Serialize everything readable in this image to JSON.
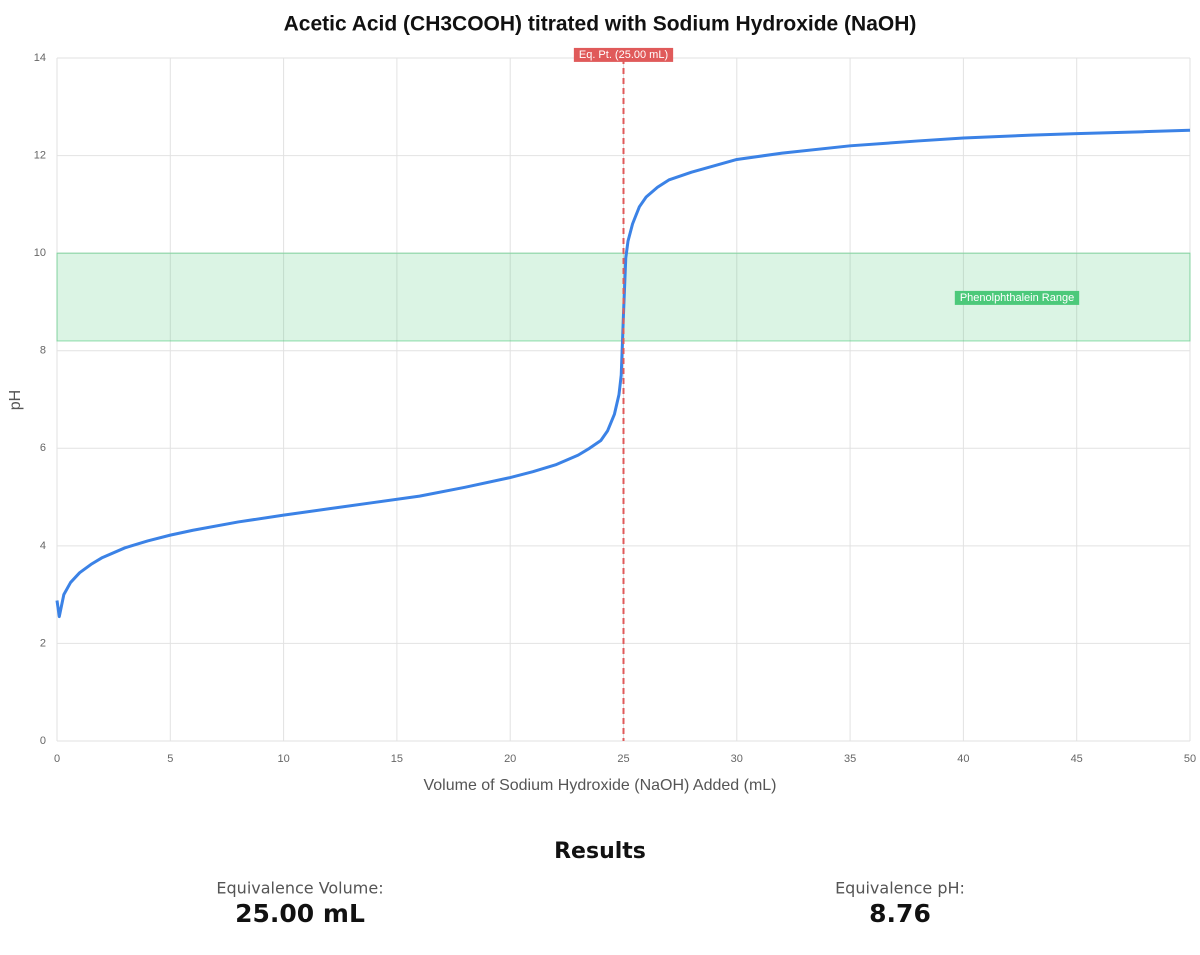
{
  "chart_data": {
    "type": "line",
    "title": "Acetic Acid (CH3COOH) titrated with Sodium Hydroxide (NaOH)",
    "x_label": "Volume of Sodium Hydroxide (NaOH) Added (mL)",
    "y_label": "pH",
    "series": [
      {
        "name": "pH",
        "color": "#3b82e6",
        "x": [
          0,
          0.1,
          0.3,
          0.6,
          1,
          1.5,
          2,
          3,
          4,
          5,
          6,
          8,
          10,
          12,
          14,
          16,
          18,
          20,
          21,
          22,
          23,
          23.5,
          24,
          24.3,
          24.6,
          24.8,
          24.9,
          25,
          25.1,
          25.2,
          25.4,
          25.7,
          26,
          26.5,
          27,
          28,
          30,
          32,
          35,
          38,
          40,
          43,
          45,
          48,
          50
        ],
        "values": [
          2.88,
          2.55,
          3.0,
          3.25,
          3.45,
          3.62,
          3.76,
          3.96,
          4.1,
          4.22,
          4.32,
          4.49,
          4.63,
          4.76,
          4.89,
          5.02,
          5.2,
          5.4,
          5.52,
          5.66,
          5.86,
          6.0,
          6.16,
          6.36,
          6.7,
          7.1,
          7.5,
          8.76,
          9.9,
          10.25,
          10.6,
          10.95,
          11.15,
          11.35,
          11.5,
          11.66,
          11.92,
          12.05,
          12.2,
          12.3,
          12.36,
          12.42,
          12.45,
          12.49,
          12.52
        ]
      }
    ],
    "xlim": [
      0,
      50
    ],
    "xticks": [
      0,
      5,
      10,
      15,
      20,
      25,
      30,
      35,
      40,
      45,
      50
    ],
    "ylim": [
      0,
      14
    ],
    "yticks": [
      0,
      2,
      4,
      6,
      8,
      10,
      12,
      14
    ],
    "grid": true,
    "vline": {
      "x": 25,
      "label": "Eq. Pt. (25.00 mL)",
      "color": "#e05a5a"
    },
    "band": {
      "range": [
        8.2,
        10
      ],
      "label": "Phenolphthalein Range",
      "color": "#4cc97a"
    }
  },
  "results": {
    "title": "Results",
    "items": [
      {
        "label": "Equivalence Volume:",
        "value": "25.00 mL"
      },
      {
        "label": "Equivalence pH:",
        "value": "8.76"
      }
    ]
  }
}
